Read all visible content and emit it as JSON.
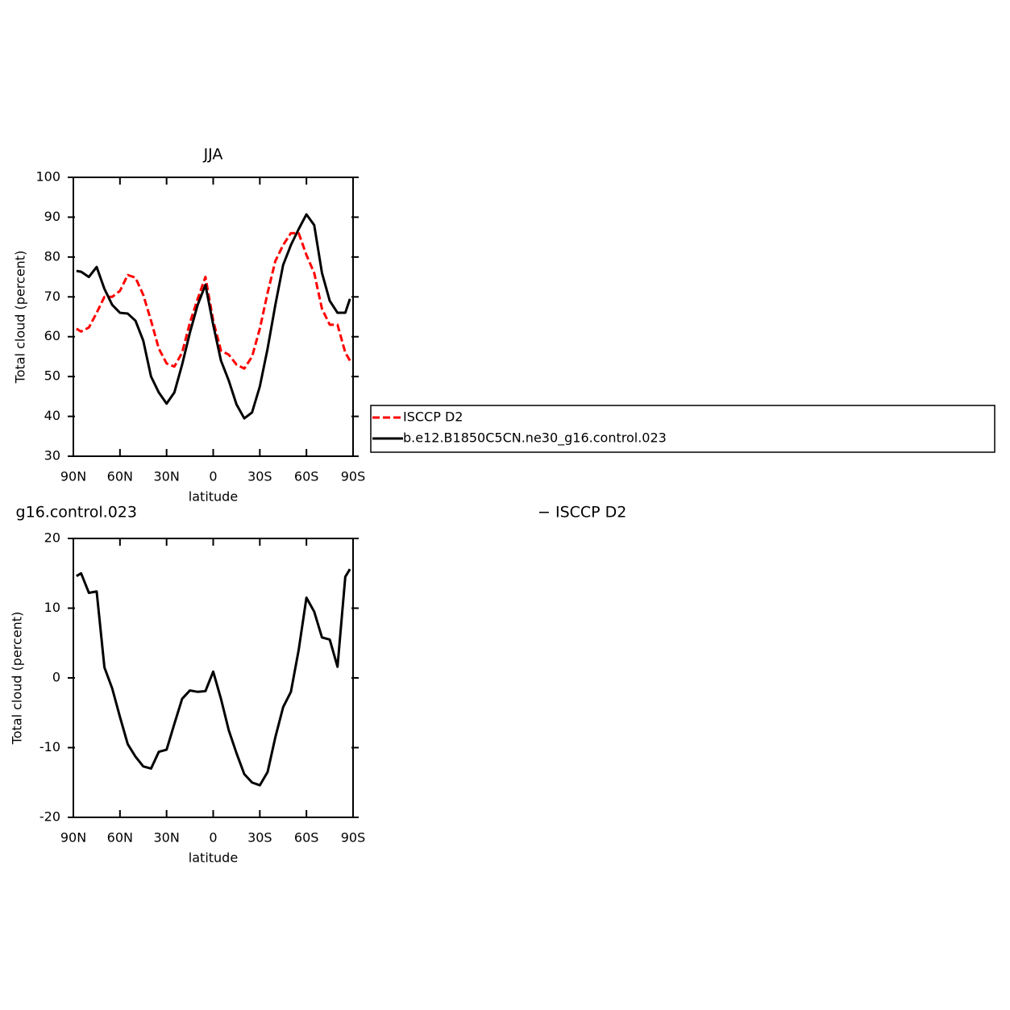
{
  "chart_data": [
    {
      "type": "line",
      "title": "JJA",
      "xlabel": "latitude",
      "ylabel": "Total cloud (percent)",
      "x": [
        88,
        85,
        80,
        75,
        70,
        65,
        60,
        55,
        50,
        45,
        40,
        35,
        30,
        25,
        20,
        15,
        10,
        5,
        0,
        -5,
        -10,
        -15,
        -20,
        -25,
        -30,
        -35,
        -40,
        -45,
        -50,
        -55,
        -60,
        -65,
        -70,
        -75,
        -80,
        -85,
        -88
      ],
      "xlim": [
        90,
        -90
      ],
      "xticks": [
        {
          "value": 90,
          "label": "90N"
        },
        {
          "value": 60,
          "label": "60N"
        },
        {
          "value": 30,
          "label": "30N"
        },
        0,
        {
          "value": -30,
          "label": "30S"
        },
        {
          "value": -60,
          "label": "60S"
        },
        {
          "value": -90,
          "label": "90S"
        }
      ],
      "ylim": [
        30,
        100
      ],
      "yticks": [
        30,
        40,
        50,
        60,
        70,
        80,
        90,
        100
      ],
      "legend": "right",
      "series": [
        {
          "name": "ISCCP D2",
          "color": "#ff0000",
          "dash": true,
          "values": [
            62,
            61.3,
            62.3,
            66,
            70,
            70,
            71.5,
            75.5,
            74.8,
            70.5,
            64,
            57,
            53.3,
            52.5,
            56,
            63.5,
            69.5,
            75,
            64,
            56.5,
            55.5,
            53,
            52,
            55,
            62,
            71,
            79,
            83,
            86,
            86,
            80.5,
            76,
            67,
            63,
            63,
            56,
            54
          ]
        },
        {
          "name": "b.e12.B1850C5CN.ne30_g16.control.023",
          "color": "#000000",
          "dash": false,
          "values": [
            76.5,
            76.3,
            75,
            77.5,
            72,
            68,
            66,
            65.8,
            64,
            59,
            50,
            46,
            43.2,
            46,
            53,
            61,
            68,
            73,
            63,
            54,
            49,
            43,
            39.5,
            41,
            47.5,
            57,
            68,
            78,
            83,
            87,
            90.7,
            88,
            76,
            69,
            66,
            66,
            69.5
          ]
        }
      ]
    },
    {
      "type": "line",
      "title_parts": [
        "g16.control.023",
        "− ISCCP D2"
      ],
      "xlabel": "latitude",
      "ylabel": "Total cloud (percent)",
      "x": [
        88,
        85,
        80,
        75,
        70,
        65,
        60,
        55,
        50,
        45,
        40,
        35,
        30,
        25,
        20,
        15,
        10,
        5,
        0,
        -5,
        -10,
        -15,
        -20,
        -25,
        -30,
        -35,
        -40,
        -45,
        -50,
        -55,
        -60,
        -65,
        -70,
        -75,
        -80,
        -85,
        -88
      ],
      "xlim": [
        90,
        -90
      ],
      "xticks": [
        {
          "value": 90,
          "label": "90N"
        },
        {
          "value": 60,
          "label": "60N"
        },
        {
          "value": 30,
          "label": "30N"
        },
        0,
        {
          "value": -30,
          "label": "30S"
        },
        {
          "value": -60,
          "label": "60S"
        },
        {
          "value": -90,
          "label": "90S"
        }
      ],
      "ylim": [
        -20,
        20
      ],
      "yticks": [
        -20,
        -10,
        0,
        10,
        20
      ],
      "series": [
        {
          "color": "#000000",
          "dash": false,
          "values": [
            14.6,
            15,
            12.2,
            12.4,
            1.5,
            -1.5,
            -5.6,
            -9.5,
            -11.3,
            -12.7,
            -13,
            -10.6,
            -10.3,
            -6.6,
            -3,
            -1.8,
            -2,
            -1.9,
            0.9,
            -3,
            -7.5,
            -10.8,
            -13.8,
            -15,
            -15.4,
            -13.5,
            -8.5,
            -4.2,
            -2,
            4,
            11.5,
            9.5,
            5.8,
            5.5,
            1.6,
            14.5,
            15.6
          ]
        }
      ]
    }
  ]
}
